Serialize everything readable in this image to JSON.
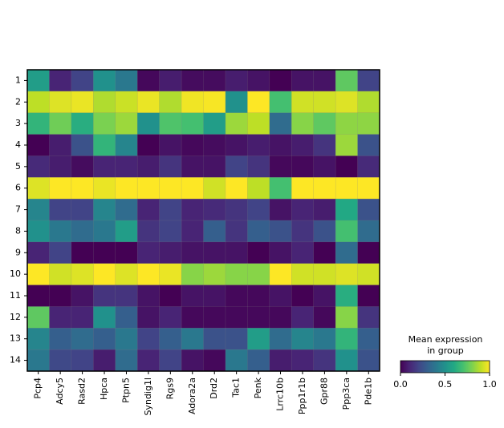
{
  "chart_data": {
    "type": "heatmap",
    "categories": [
      "Pcp4",
      "Adcy5",
      "Rasd2",
      "Hpca",
      "Ptpn5",
      "Syndig1l",
      "Rgs9",
      "Adora2a",
      "Drd2",
      "Tac1",
      "Penk",
      "Lrrc10b",
      "Ppp1r1b",
      "Gpr88",
      "Ppp3ca",
      "Pde1b"
    ],
    "y_categories": [
      "1",
      "2",
      "3",
      "4",
      "5",
      "6",
      "7",
      "8",
      "9",
      "10",
      "11",
      "12",
      "13",
      "14"
    ],
    "values": [
      [
        0.55,
        0.1,
        0.2,
        0.5,
        0.4,
        0.02,
        0.08,
        0.03,
        0.03,
        0.08,
        0.05,
        0.0,
        0.05,
        0.05,
        0.75,
        0.2
      ],
      [
        0.9,
        0.95,
        0.97,
        0.88,
        0.92,
        0.97,
        0.88,
        0.98,
        0.99,
        0.5,
        1.0,
        0.7,
        0.93,
        0.93,
        0.95,
        0.88
      ],
      [
        0.65,
        0.78,
        0.62,
        0.8,
        0.85,
        0.5,
        0.72,
        0.7,
        0.55,
        0.85,
        0.9,
        0.35,
        0.82,
        0.75,
        0.83,
        0.83
      ],
      [
        0.0,
        0.08,
        0.25,
        0.65,
        0.45,
        0.0,
        0.05,
        0.02,
        0.03,
        0.05,
        0.08,
        0.05,
        0.08,
        0.15,
        0.85,
        0.25
      ],
      [
        0.12,
        0.08,
        0.03,
        0.1,
        0.1,
        0.08,
        0.15,
        0.05,
        0.05,
        0.2,
        0.15,
        0.02,
        0.02,
        0.05,
        0.0,
        0.12
      ],
      [
        0.95,
        1.0,
        1.0,
        0.97,
        1.0,
        1.0,
        1.0,
        1.0,
        0.93,
        1.0,
        0.9,
        0.7,
        1.0,
        1.0,
        1.0,
        1.0
      ],
      [
        0.45,
        0.2,
        0.2,
        0.45,
        0.35,
        0.1,
        0.2,
        0.1,
        0.12,
        0.15,
        0.2,
        0.05,
        0.1,
        0.08,
        0.6,
        0.25
      ],
      [
        0.5,
        0.4,
        0.35,
        0.4,
        0.55,
        0.15,
        0.2,
        0.1,
        0.3,
        0.15,
        0.3,
        0.25,
        0.15,
        0.25,
        0.7,
        0.35
      ],
      [
        0.1,
        0.2,
        0.0,
        0.0,
        0.0,
        0.1,
        0.08,
        0.05,
        0.05,
        0.05,
        0.0,
        0.05,
        0.1,
        0.0,
        0.35,
        0.0
      ],
      [
        1.0,
        0.93,
        0.95,
        1.0,
        0.95,
        1.0,
        0.97,
        0.82,
        0.85,
        0.82,
        0.82,
        1.0,
        0.93,
        0.93,
        0.95,
        0.93
      ],
      [
        0.0,
        0.0,
        0.05,
        0.15,
        0.15,
        0.05,
        0.0,
        0.05,
        0.05,
        0.02,
        0.02,
        0.05,
        0.0,
        0.05,
        0.62,
        0.0
      ],
      [
        0.75,
        0.1,
        0.1,
        0.5,
        0.3,
        0.05,
        0.1,
        0.02,
        0.02,
        0.02,
        0.02,
        0.02,
        0.1,
        0.02,
        0.82,
        0.15
      ],
      [
        0.45,
        0.3,
        0.35,
        0.3,
        0.4,
        0.2,
        0.3,
        0.4,
        0.25,
        0.25,
        0.55,
        0.35,
        0.45,
        0.4,
        0.65,
        0.3
      ],
      [
        0.4,
        0.22,
        0.2,
        0.08,
        0.35,
        0.1,
        0.2,
        0.05,
        0.02,
        0.4,
        0.3,
        0.08,
        0.1,
        0.15,
        0.5,
        0.25
      ]
    ],
    "colormap": "viridis",
    "clim": [
      0,
      1
    ],
    "colorbar_title": [
      "Mean expression",
      "in group"
    ],
    "colorbar_ticks": [
      {
        "value": 0,
        "label": "0.0"
      },
      0.5,
      {
        "value": 1,
        "label": "1.0"
      }
    ]
  }
}
